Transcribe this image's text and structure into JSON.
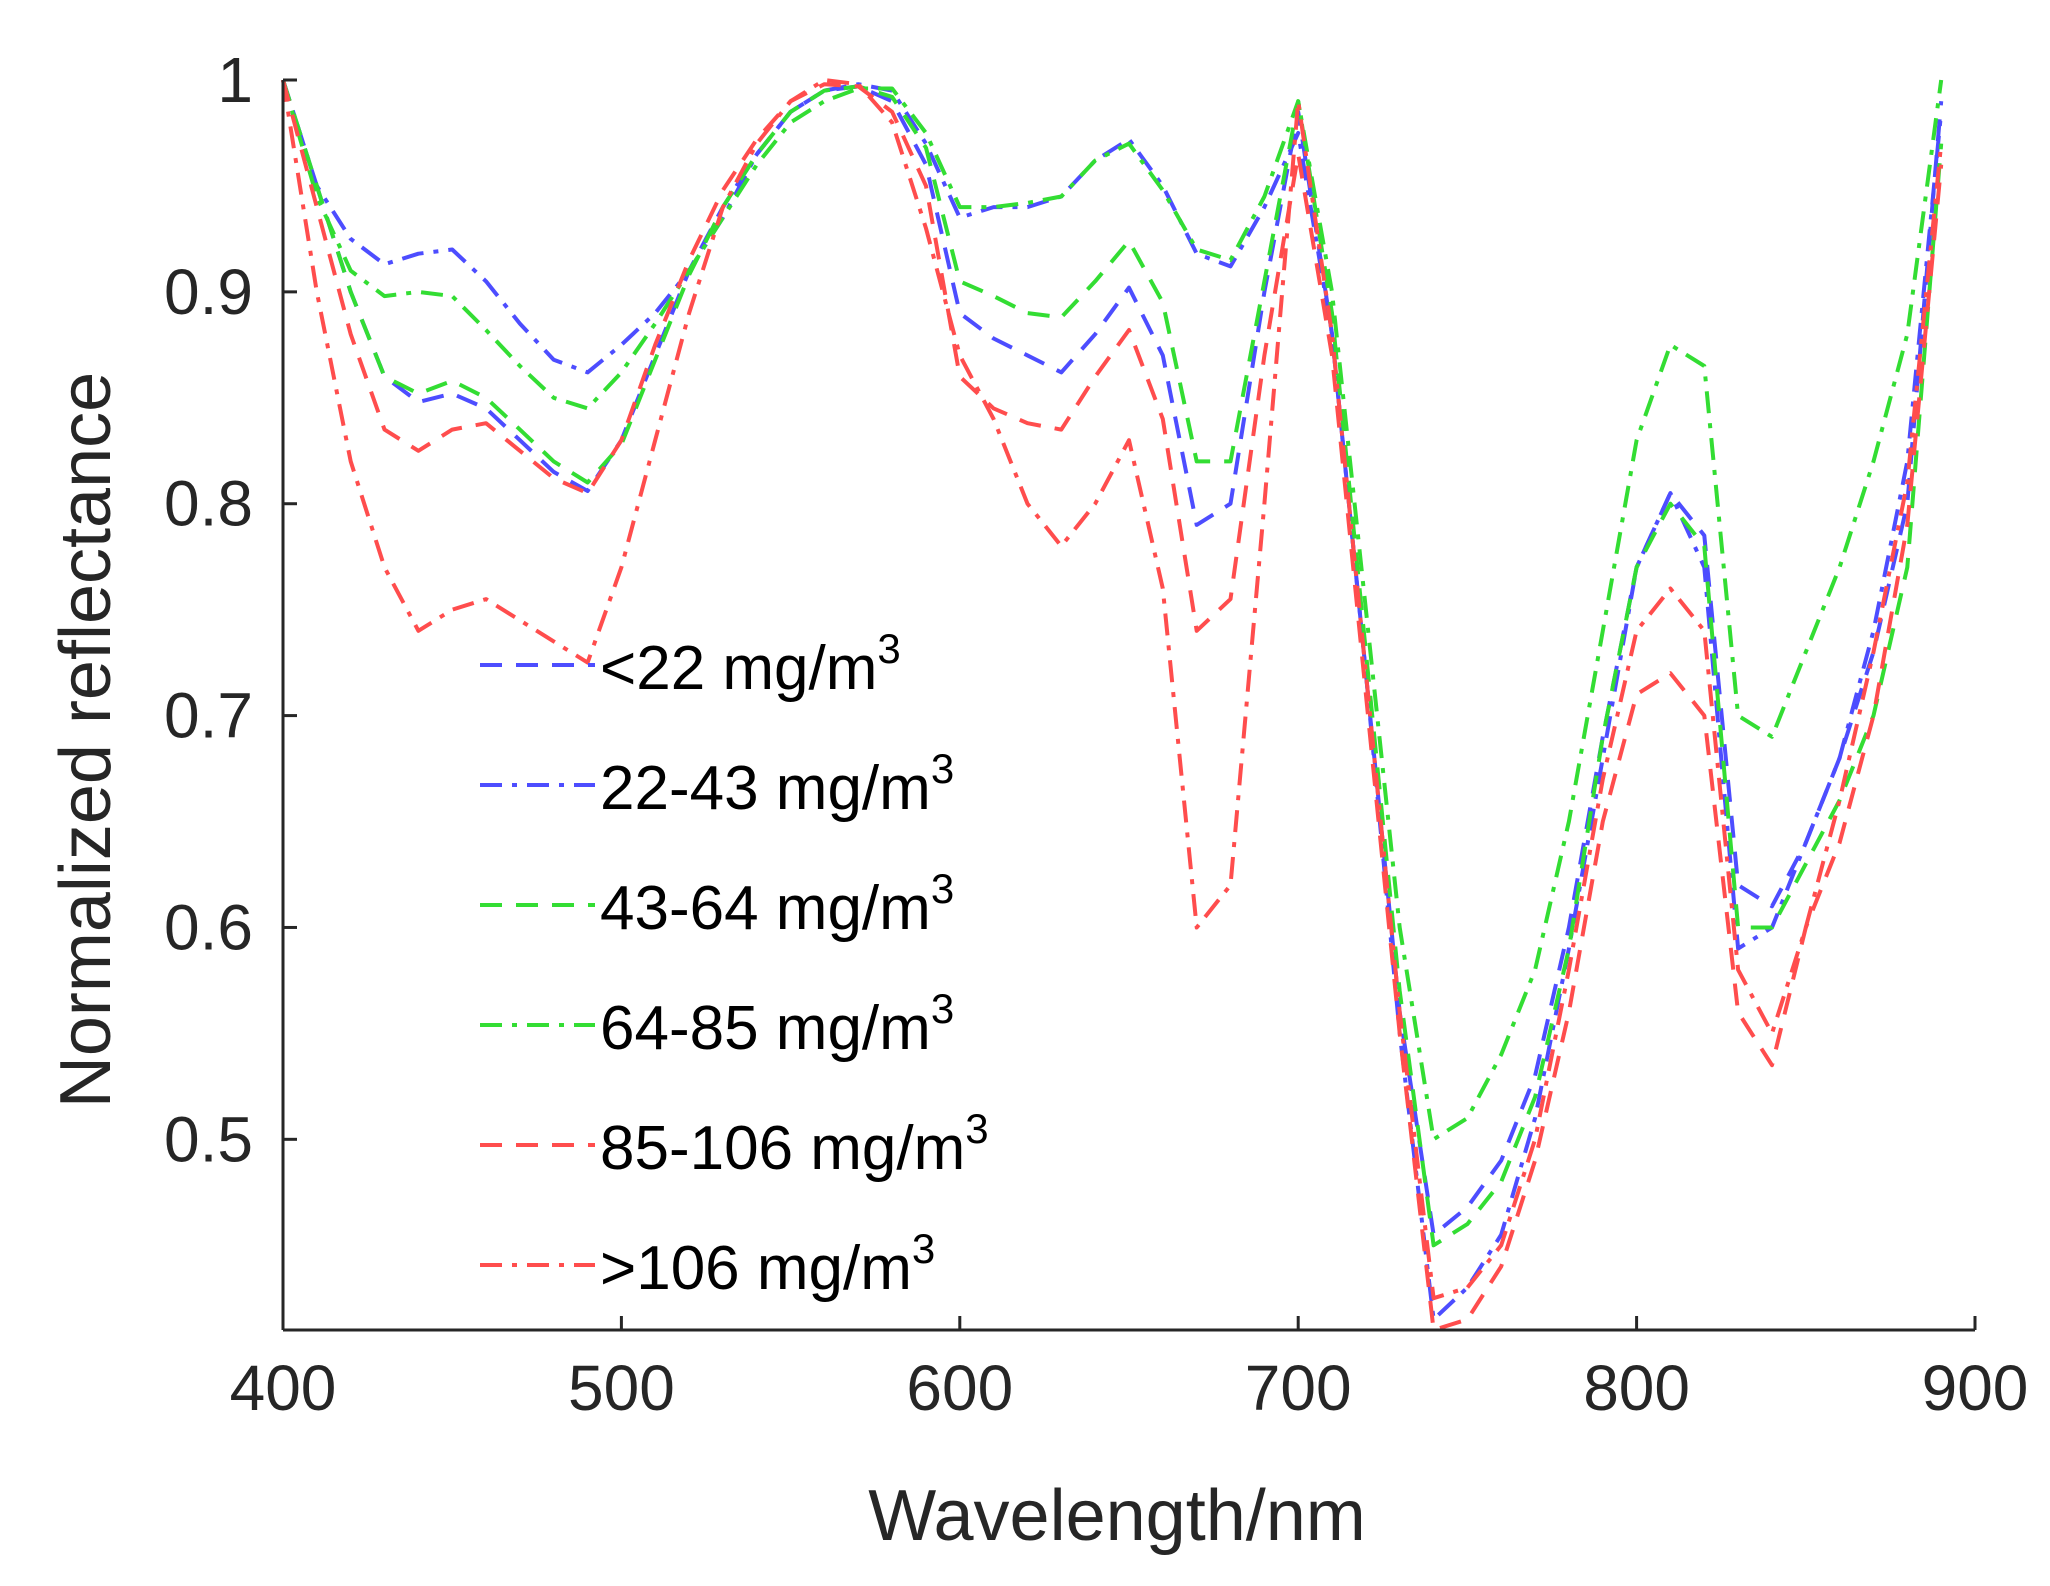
{
  "chart_data": {
    "type": "line",
    "title": "",
    "xlabel": "Wavelength/nm",
    "ylabel": "Normalized reflectance",
    "xlim": [
      400,
      900
    ],
    "ylim": [
      0.41,
      1.0
    ],
    "x_ticks": [
      "400",
      "500",
      "600",
      "700",
      "800",
      "900"
    ],
    "x_tick_values": [
      400,
      500,
      600,
      700,
      800,
      900
    ],
    "y_ticks": [
      "0.5",
      "0.6",
      "0.7",
      "0.8",
      "0.9",
      "1"
    ],
    "y_tick_values": [
      0.5,
      0.6,
      0.7,
      0.8,
      0.9,
      1.0
    ],
    "grid": false,
    "legend_position": "lower-left",
    "legend_unit": "mg/m",
    "legend_unit_exponent": "3",
    "series": [
      {
        "name": "<22",
        "color": "#4d4dff",
        "dash": "dashed",
        "x": [
          400,
          410,
          420,
          430,
          440,
          450,
          460,
          470,
          480,
          490,
          500,
          510,
          520,
          530,
          540,
          550,
          560,
          570,
          580,
          590,
          600,
          610,
          620,
          630,
          640,
          650,
          660,
          670,
          680,
          690,
          700,
          710,
          720,
          730,
          740,
          750,
          760,
          770,
          780,
          790,
          800,
          810,
          820,
          830,
          840,
          850,
          860,
          870,
          880,
          890
        ],
        "y": [
          1.0,
          0.95,
          0.9,
          0.86,
          0.848,
          0.852,
          0.845,
          0.83,
          0.815,
          0.806,
          0.83,
          0.87,
          0.91,
          0.94,
          0.965,
          0.985,
          0.995,
          0.997,
          0.99,
          0.96,
          0.89,
          0.878,
          0.87,
          0.862,
          0.88,
          0.902,
          0.87,
          0.79,
          0.8,
          0.9,
          0.985,
          0.88,
          0.72,
          0.56,
          0.455,
          0.468,
          0.49,
          0.53,
          0.6,
          0.69,
          0.77,
          0.805,
          0.785,
          0.62,
          0.61,
          0.64,
          0.68,
          0.73,
          0.8,
          0.99
        ]
      },
      {
        "name": "22-43",
        "color": "#4d4dff",
        "dash": "dashdot",
        "x": [
          400,
          410,
          420,
          430,
          440,
          450,
          460,
          470,
          480,
          490,
          500,
          510,
          520,
          530,
          540,
          550,
          560,
          570,
          580,
          590,
          600,
          610,
          620,
          630,
          640,
          650,
          660,
          670,
          680,
          690,
          700,
          710,
          720,
          730,
          740,
          750,
          760,
          770,
          780,
          790,
          800,
          810,
          820,
          830,
          840,
          850,
          860,
          870,
          880,
          890
        ],
        "y": [
          1.0,
          0.95,
          0.925,
          0.913,
          0.918,
          0.92,
          0.905,
          0.885,
          0.868,
          0.862,
          0.875,
          0.89,
          0.91,
          0.935,
          0.965,
          0.985,
          0.995,
          0.998,
          0.995,
          0.97,
          0.935,
          0.94,
          0.94,
          0.945,
          0.962,
          0.972,
          0.95,
          0.918,
          0.912,
          0.94,
          0.975,
          0.88,
          0.72,
          0.55,
          0.415,
          0.43,
          0.455,
          0.51,
          0.59,
          0.68,
          0.77,
          0.805,
          0.77,
          0.59,
          0.6,
          0.64,
          0.68,
          0.74,
          0.82,
          0.985
        ]
      },
      {
        "name": "43-64",
        "color": "#33dd33",
        "dash": "dashed",
        "x": [
          400,
          410,
          420,
          430,
          440,
          450,
          460,
          470,
          480,
          490,
          500,
          510,
          520,
          530,
          540,
          550,
          560,
          570,
          580,
          590,
          600,
          610,
          620,
          630,
          640,
          650,
          660,
          670,
          680,
          690,
          700,
          710,
          720,
          730,
          740,
          750,
          760,
          770,
          780,
          790,
          800,
          810,
          820,
          830,
          840,
          850,
          860,
          870,
          880,
          890
        ],
        "y": [
          1.0,
          0.95,
          0.9,
          0.86,
          0.852,
          0.858,
          0.85,
          0.835,
          0.82,
          0.81,
          0.828,
          0.868,
          0.908,
          0.94,
          0.965,
          0.985,
          0.995,
          0.997,
          0.992,
          0.968,
          0.905,
          0.898,
          0.89,
          0.888,
          0.905,
          0.924,
          0.895,
          0.82,
          0.82,
          0.905,
          0.99,
          0.89,
          0.73,
          0.57,
          0.45,
          0.46,
          0.48,
          0.52,
          0.59,
          0.69,
          0.77,
          0.8,
          0.78,
          0.6,
          0.6,
          0.63,
          0.66,
          0.7,
          0.77,
          0.97
        ]
      },
      {
        "name": "64-85",
        "color": "#33dd33",
        "dash": "dashdot",
        "x": [
          400,
          410,
          420,
          430,
          440,
          450,
          460,
          470,
          480,
          490,
          500,
          510,
          520,
          530,
          540,
          550,
          560,
          570,
          580,
          590,
          600,
          610,
          620,
          630,
          640,
          650,
          660,
          670,
          680,
          690,
          700,
          710,
          720,
          730,
          740,
          750,
          760,
          770,
          780,
          790,
          800,
          810,
          820,
          830,
          840,
          850,
          860,
          870,
          880,
          890
        ],
        "y": [
          1.0,
          0.945,
          0.91,
          0.898,
          0.9,
          0.898,
          0.882,
          0.865,
          0.85,
          0.845,
          0.862,
          0.885,
          0.91,
          0.935,
          0.96,
          0.98,
          0.99,
          0.996,
          0.996,
          0.975,
          0.94,
          0.94,
          0.942,
          0.945,
          0.962,
          0.97,
          0.948,
          0.92,
          0.915,
          0.945,
          0.99,
          0.9,
          0.75,
          0.6,
          0.5,
          0.51,
          0.54,
          0.58,
          0.65,
          0.74,
          0.83,
          0.875,
          0.865,
          0.7,
          0.69,
          0.73,
          0.77,
          0.82,
          0.88,
          1.0
        ]
      },
      {
        "name": "85-106",
        "color": "#ff4d4d",
        "dash": "dashed",
        "x": [
          400,
          410,
          420,
          430,
          440,
          450,
          460,
          470,
          480,
          490,
          500,
          510,
          520,
          530,
          540,
          550,
          560,
          570,
          580,
          590,
          600,
          610,
          620,
          630,
          640,
          650,
          660,
          670,
          680,
          690,
          700,
          710,
          720,
          730,
          740,
          750,
          760,
          770,
          780,
          790,
          800,
          810,
          820,
          830,
          840,
          850,
          860,
          870,
          880,
          890
        ],
        "y": [
          1.0,
          0.94,
          0.88,
          0.835,
          0.825,
          0.835,
          0.838,
          0.825,
          0.812,
          0.805,
          0.83,
          0.875,
          0.915,
          0.948,
          0.972,
          0.99,
          0.998,
          0.997,
          0.985,
          0.95,
          0.86,
          0.845,
          0.838,
          0.835,
          0.86,
          0.882,
          0.84,
          0.74,
          0.755,
          0.87,
          0.965,
          0.87,
          0.71,
          0.55,
          0.41,
          0.415,
          0.44,
          0.49,
          0.56,
          0.65,
          0.71,
          0.72,
          0.7,
          0.56,
          0.535,
          0.6,
          0.64,
          0.7,
          0.79,
          0.96
        ]
      },
      {
        "name": ">106",
        "color": "#ff4d4d",
        "dash": "dashdot",
        "x": [
          400,
          410,
          420,
          430,
          440,
          450,
          460,
          470,
          480,
          490,
          500,
          510,
          520,
          530,
          540,
          550,
          560,
          570,
          580,
          590,
          600,
          610,
          620,
          630,
          640,
          650,
          660,
          670,
          680,
          690,
          700,
          710,
          720,
          730,
          740,
          750,
          760,
          770,
          780,
          790,
          800,
          810,
          820,
          830,
          840,
          850,
          860,
          870,
          880,
          890
        ],
        "y": [
          1.0,
          0.9,
          0.82,
          0.77,
          0.74,
          0.75,
          0.755,
          0.745,
          0.735,
          0.725,
          0.77,
          0.83,
          0.89,
          0.94,
          0.97,
          0.99,
          1.0,
          0.998,
          0.98,
          0.93,
          0.87,
          0.84,
          0.8,
          0.78,
          0.8,
          0.83,
          0.76,
          0.6,
          0.62,
          0.8,
          0.99,
          0.88,
          0.72,
          0.56,
          0.425,
          0.43,
          0.45,
          0.5,
          0.58,
          0.67,
          0.74,
          0.76,
          0.74,
          0.58,
          0.55,
          0.6,
          0.66,
          0.73,
          0.81,
          0.97
        ]
      }
    ]
  }
}
